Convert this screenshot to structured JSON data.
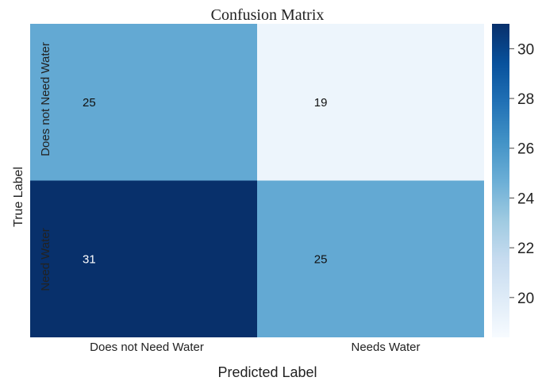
{
  "chart_data": {
    "type": "heatmap",
    "title": "Confusion Matrix",
    "xlabel": "Predicted Label",
    "ylabel": "True Label",
    "x_categories": [
      "Does not Need Water",
      "Needs Water"
    ],
    "y_categories": [
      "Does not Need Water",
      "Need Water"
    ],
    "values": [
      [
        25,
        19
      ],
      [
        31,
        25
      ]
    ],
    "colorbar": {
      "min": 18.4,
      "max": 31,
      "ticks": [
        20,
        22,
        24,
        26,
        28,
        30
      ]
    },
    "colormap": "Blues",
    "colors": {
      "low": "#f7fbff",
      "high": "#08306b"
    }
  }
}
